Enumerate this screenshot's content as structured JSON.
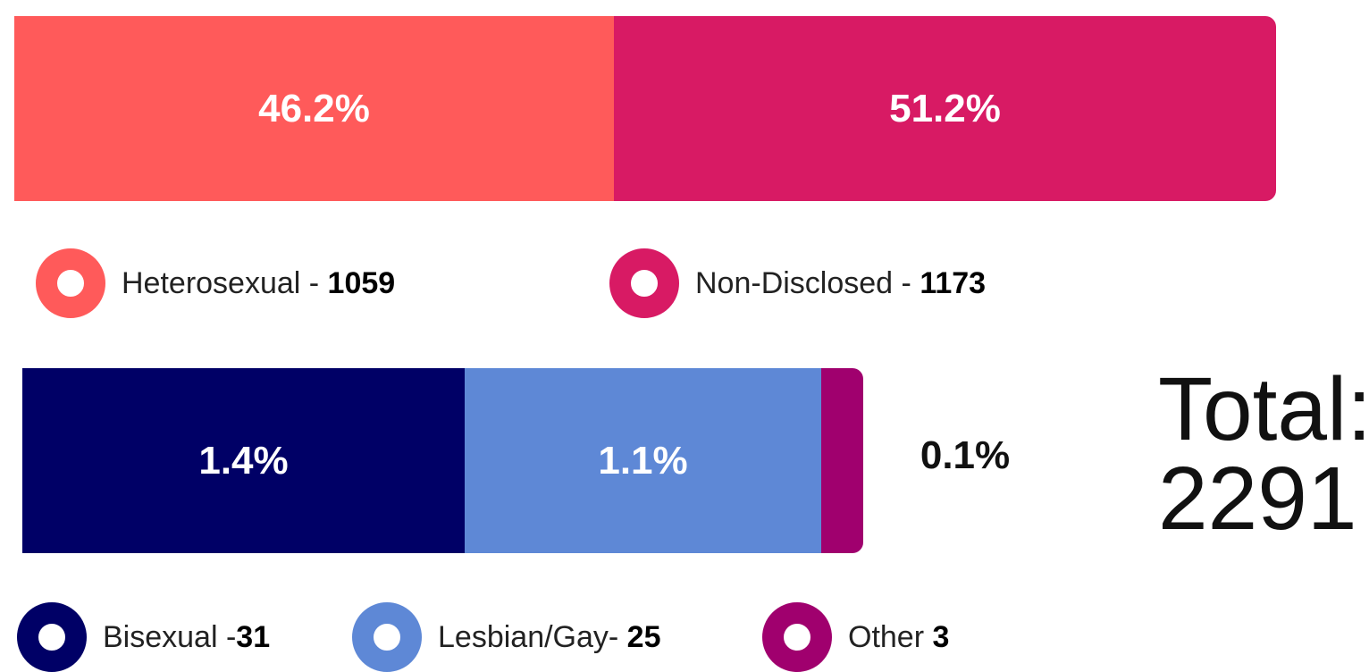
{
  "bars": [
    {
      "segments": [
        {
          "label": "46.2%",
          "color": "#ff5a5a"
        },
        {
          "label": "51.2%",
          "color": "#d81a64"
        }
      ]
    },
    {
      "segments": [
        {
          "label": "1.4%",
          "color": "#000066"
        },
        {
          "label": "1.1%",
          "color": "#5e88d6"
        },
        {
          "label": "0.1%",
          "color": "#a0006e"
        }
      ]
    }
  ],
  "legends": [
    [
      {
        "name": "Heterosexual - ",
        "count": "1059"
      },
      {
        "name": "Non-Disclosed - ",
        "count": "1173"
      }
    ],
    [
      {
        "name": "Bisexual -",
        "count": "31"
      },
      {
        "name": "Lesbian/Gay- ",
        "count": "25"
      },
      {
        "name": "Other ",
        "count": "3"
      }
    ]
  ],
  "total": {
    "label": "Total:",
    "value": "2291"
  }
}
